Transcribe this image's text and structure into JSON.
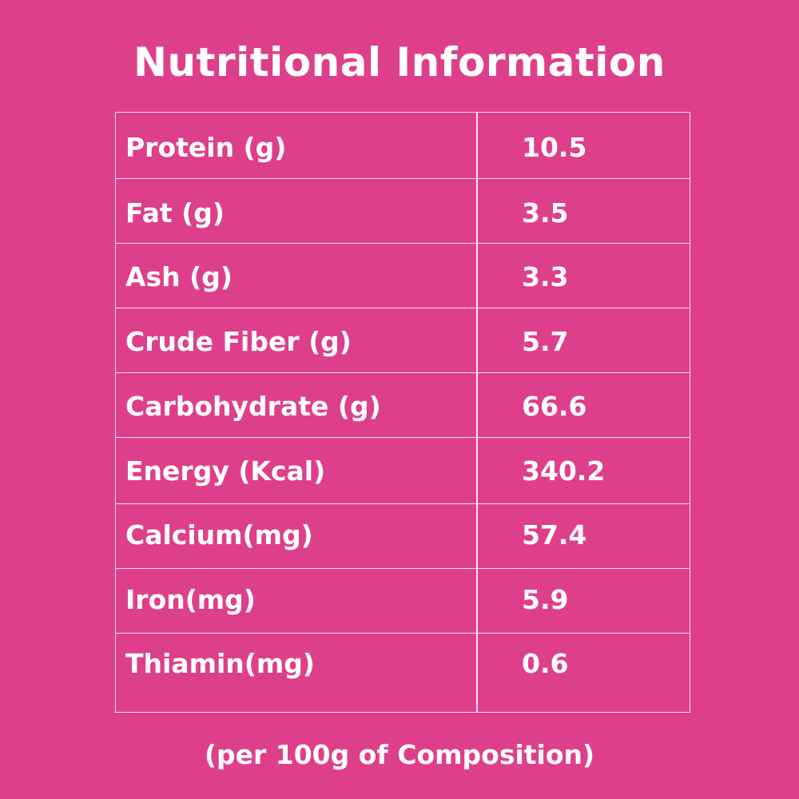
{
  "title": "Nutritional Information",
  "rows": [
    {
      "label": "Protein (g)",
      "value": "10.5"
    },
    {
      "label": "Fat (g)",
      "value": "3.5"
    },
    {
      "label": "Ash (g)",
      "value": "3.3"
    },
    {
      "label": "Crude Fiber (g)",
      "value": "5.7"
    },
    {
      "label": "Carbohydrate (g)",
      "value": "66.6"
    },
    {
      "label": "Energy (Kcal)",
      "value": "340.2"
    },
    {
      "label": "Calcium(mg)",
      "value": "57.4"
    },
    {
      "label": "Iron(mg)",
      "value": "5.9"
    },
    {
      "label": "Thiamin(mg)",
      "value": "0.6"
    }
  ],
  "footnote": "(per 100g of Composition)",
  "colors": {
    "background": "#de3f8b",
    "text": "#ffffff"
  }
}
